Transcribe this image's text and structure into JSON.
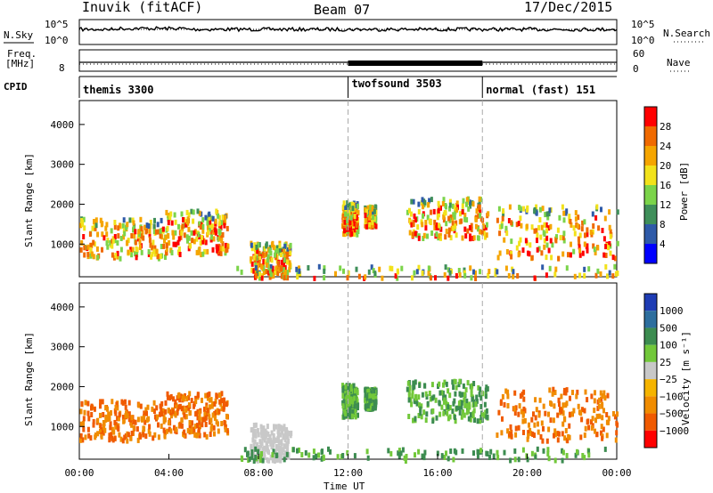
{
  "header": {
    "station": "Inuvik (fitACF)",
    "beam": "Beam 07",
    "date": "17/Dec/2015"
  },
  "left_labels": {
    "nsky": "N.Sky",
    "freq_line1": "Freq.",
    "freq_line2": "[MHz]",
    "cpid": "CPID"
  },
  "right_labels": {
    "nsearch": "N.Search",
    "nave": "Nave"
  },
  "cpid_segments": [
    {
      "label": "themis 3300",
      "start_hour": 0
    },
    {
      "label": "twofsound 3503",
      "start_hour": 12
    },
    {
      "label": "normal (fast) 151",
      "start_hour": 18
    }
  ],
  "colors": {
    "power_scale": [
      "#0000ff",
      "#2e5aa8",
      "#3f8f5a",
      "#7bd44a",
      "#f2e21b",
      "#f5a500",
      "#f06a00",
      "#ff0000"
    ],
    "velocity_scale": [
      "#1e3cb4",
      "#2d6e9e",
      "#3c8c50",
      "#72c83a",
      "#c8c8c8",
      "#f5b400",
      "#f08c00",
      "#f05a00",
      "#ff0000"
    ]
  },
  "chart_data": [
    {
      "type": "line",
      "name": "noise-sky",
      "ylabel_left": "N.Sky",
      "yticks": [
        "10^5",
        "10^0"
      ],
      "yticks_right": [
        "10^5",
        "10^0"
      ],
      "ylabel_right": "N.Search"
    },
    {
      "type": "line",
      "name": "frequency-nave",
      "ylabel_left": "[MHz]",
      "yticks": [
        "8"
      ],
      "yticks_right": [
        "60",
        "0"
      ],
      "ylabel_right": "Nave"
    },
    {
      "type": "heatmap",
      "name": "power",
      "ylabel": "Slant Range [km]",
      "yticks": [
        "1000",
        "2000",
        "3000",
        "4000"
      ],
      "ylim": [
        180,
        4600
      ],
      "colorbar_label": "Power [dB]",
      "colorbar_ticks": [
        "4",
        "8",
        "12",
        "16",
        "20",
        "24",
        "28"
      ],
      "colorbar_range": [
        0,
        32
      ]
    },
    {
      "type": "heatmap",
      "name": "velocity",
      "ylabel": "Slant Range [km]",
      "yticks": [
        "1000",
        "2000",
        "3000",
        "4000"
      ],
      "ylim": [
        180,
        4600
      ],
      "colorbar_label": "Velocity [m s⁻¹]",
      "colorbar_ticks": [
        "1000",
        "500",
        "100",
        "25",
        "−25",
        "−100",
        "−500",
        "−1000"
      ]
    }
  ],
  "xaxis": {
    "label": "Time UT",
    "ticks": [
      "00:00",
      "04:00",
      "08:00",
      "12:00",
      "16:00",
      "20:00",
      "00:00"
    ],
    "range_hours": [
      0,
      24
    ]
  }
}
